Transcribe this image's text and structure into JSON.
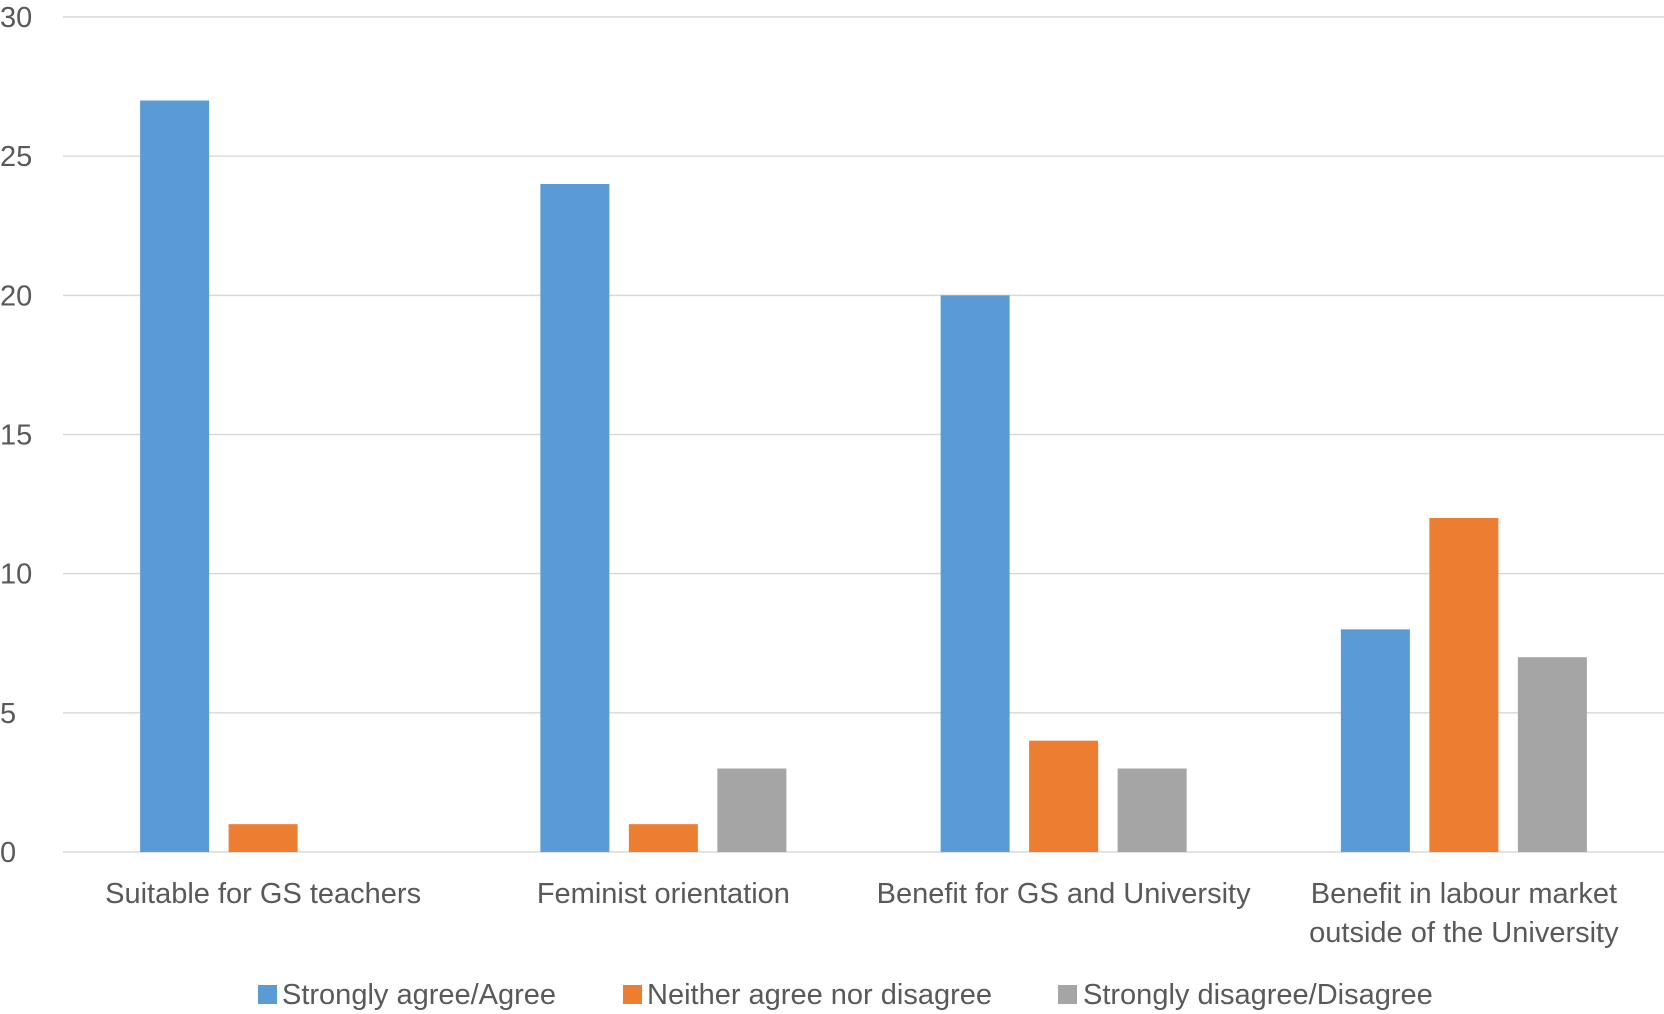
{
  "chart_data": {
    "type": "bar",
    "title": "",
    "xlabel": "",
    "ylabel": "",
    "ylim": [
      0,
      30
    ],
    "yticks": [
      0,
      5,
      10,
      15,
      20,
      25,
      30
    ],
    "grid": true,
    "legend_position": "bottom",
    "categories": [
      [
        "Suitable for GS teachers"
      ],
      [
        "Feminist orientation"
      ],
      [
        "Benefit for GS and University"
      ],
      [
        "Benefit in labour market",
        "outside of the University"
      ]
    ],
    "series": [
      {
        "name": "Strongly agree/Agree",
        "color": "#5b9bd5",
        "values": [
          27,
          24,
          20,
          8
        ]
      },
      {
        "name": "Neither agree nor disagree",
        "color": "#ed7d31",
        "values": [
          1,
          1,
          4,
          12
        ]
      },
      {
        "name": "Strongly disagree/Disagree",
        "color": "#a5a5a5",
        "values": [
          0,
          3,
          3,
          7
        ]
      }
    ]
  }
}
